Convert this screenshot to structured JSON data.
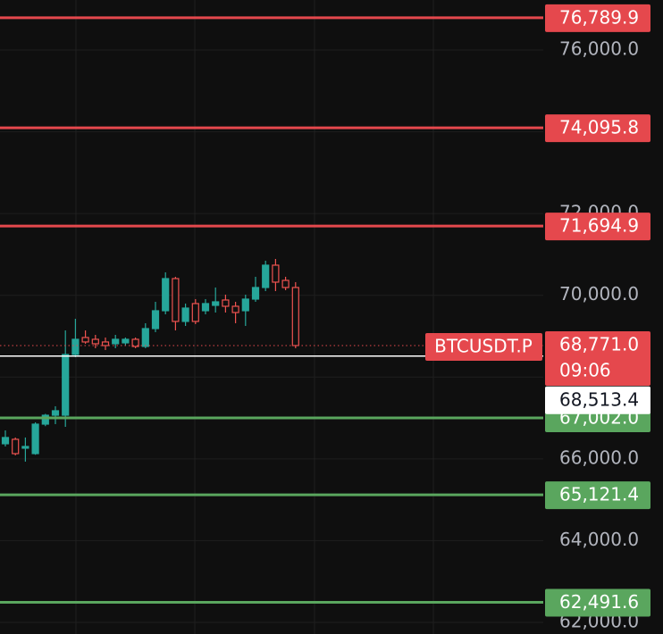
{
  "chart_data": {
    "type": "candlestick",
    "up_color": "#26a69a",
    "down_color": "#ef5350",
    "open": [
      66369,
      66478,
      66260,
      66128,
      66849,
      67067,
      67067,
      68553,
      68968,
      68924,
      68859,
      68815,
      68837,
      68924,
      68749,
      69186,
      69623,
      70409,
      69361,
      69798,
      69623,
      69754,
      69885,
      69732,
      69623,
      69907,
      70191,
      70737,
      70365,
      70191
    ],
    "high": [
      66696,
      66522,
      66522,
      66893,
      67100,
      67286,
      69142,
      69426,
      69142,
      69033,
      68968,
      69033,
      68968,
      68968,
      69317,
      69841,
      70562,
      70453,
      69798,
      69907,
      69907,
      70191,
      70016,
      69841,
      70016,
      70453,
      70846,
      70889,
      70453,
      70322
    ],
    "low": [
      66303,
      66085,
      65932,
      66100,
      66800,
      66849,
      66783,
      68487,
      68815,
      68706,
      68662,
      68706,
      68771,
      68706,
      68706,
      69099,
      69535,
      69142,
      69251,
      69295,
      69535,
      69579,
      69579,
      69317,
      69251,
      69841,
      70103,
      70103,
      70125,
      68706
    ],
    "close": [
      66522,
      66128,
      66303,
      66849,
      67067,
      67177,
      68553,
      68924,
      68859,
      68815,
      68771,
      68924,
      68924,
      68749,
      69186,
      69623,
      70409,
      69361,
      69688,
      69361,
      69798,
      69841,
      69732,
      69579,
      69907,
      70191,
      70737,
      70322,
      70191,
      68771
    ],
    "ylim": [
      61716,
      77223
    ],
    "yticks": [
      {
        "value": 62000,
        "label": "62,000.0"
      },
      {
        "value": 64000,
        "label": "64,000.0"
      },
      {
        "value": 66000,
        "label": "66,000.0"
      },
      {
        "value": 68000,
        "label": "68,000.0"
      },
      {
        "value": 70000,
        "label": "70,000.0"
      },
      {
        "value": 72000,
        "label": "72,000.0"
      },
      {
        "value": 74000,
        "label": "74,000.0"
      },
      {
        "value": 76000,
        "label": "76,000.0"
      }
    ],
    "grid": true,
    "levels": [
      {
        "value": 76789.9,
        "label": "76,789.9",
        "color": "#e5484d"
      },
      {
        "value": 74095.8,
        "label": "74,095.8",
        "color": "#e5484d"
      },
      {
        "value": 71694.9,
        "label": "71,694.9",
        "color": "#e5484d"
      },
      {
        "value": 67002.0,
        "label": "67,002.0",
        "color": "#5aa65e"
      },
      {
        "value": 65121.4,
        "label": "65,121.4",
        "color": "#5aa65e"
      },
      {
        "value": 62491.6,
        "label": "62,491.6",
        "color": "#5aa65e"
      }
    ],
    "last_price": {
      "symbol": "BTCUSDT.P",
      "value": 68771.0,
      "label": "68,771.0",
      "countdown": "09:06",
      "color": "#e5484d"
    },
    "crosshair": {
      "value": 68513.4,
      "label": "68,513.4"
    }
  }
}
